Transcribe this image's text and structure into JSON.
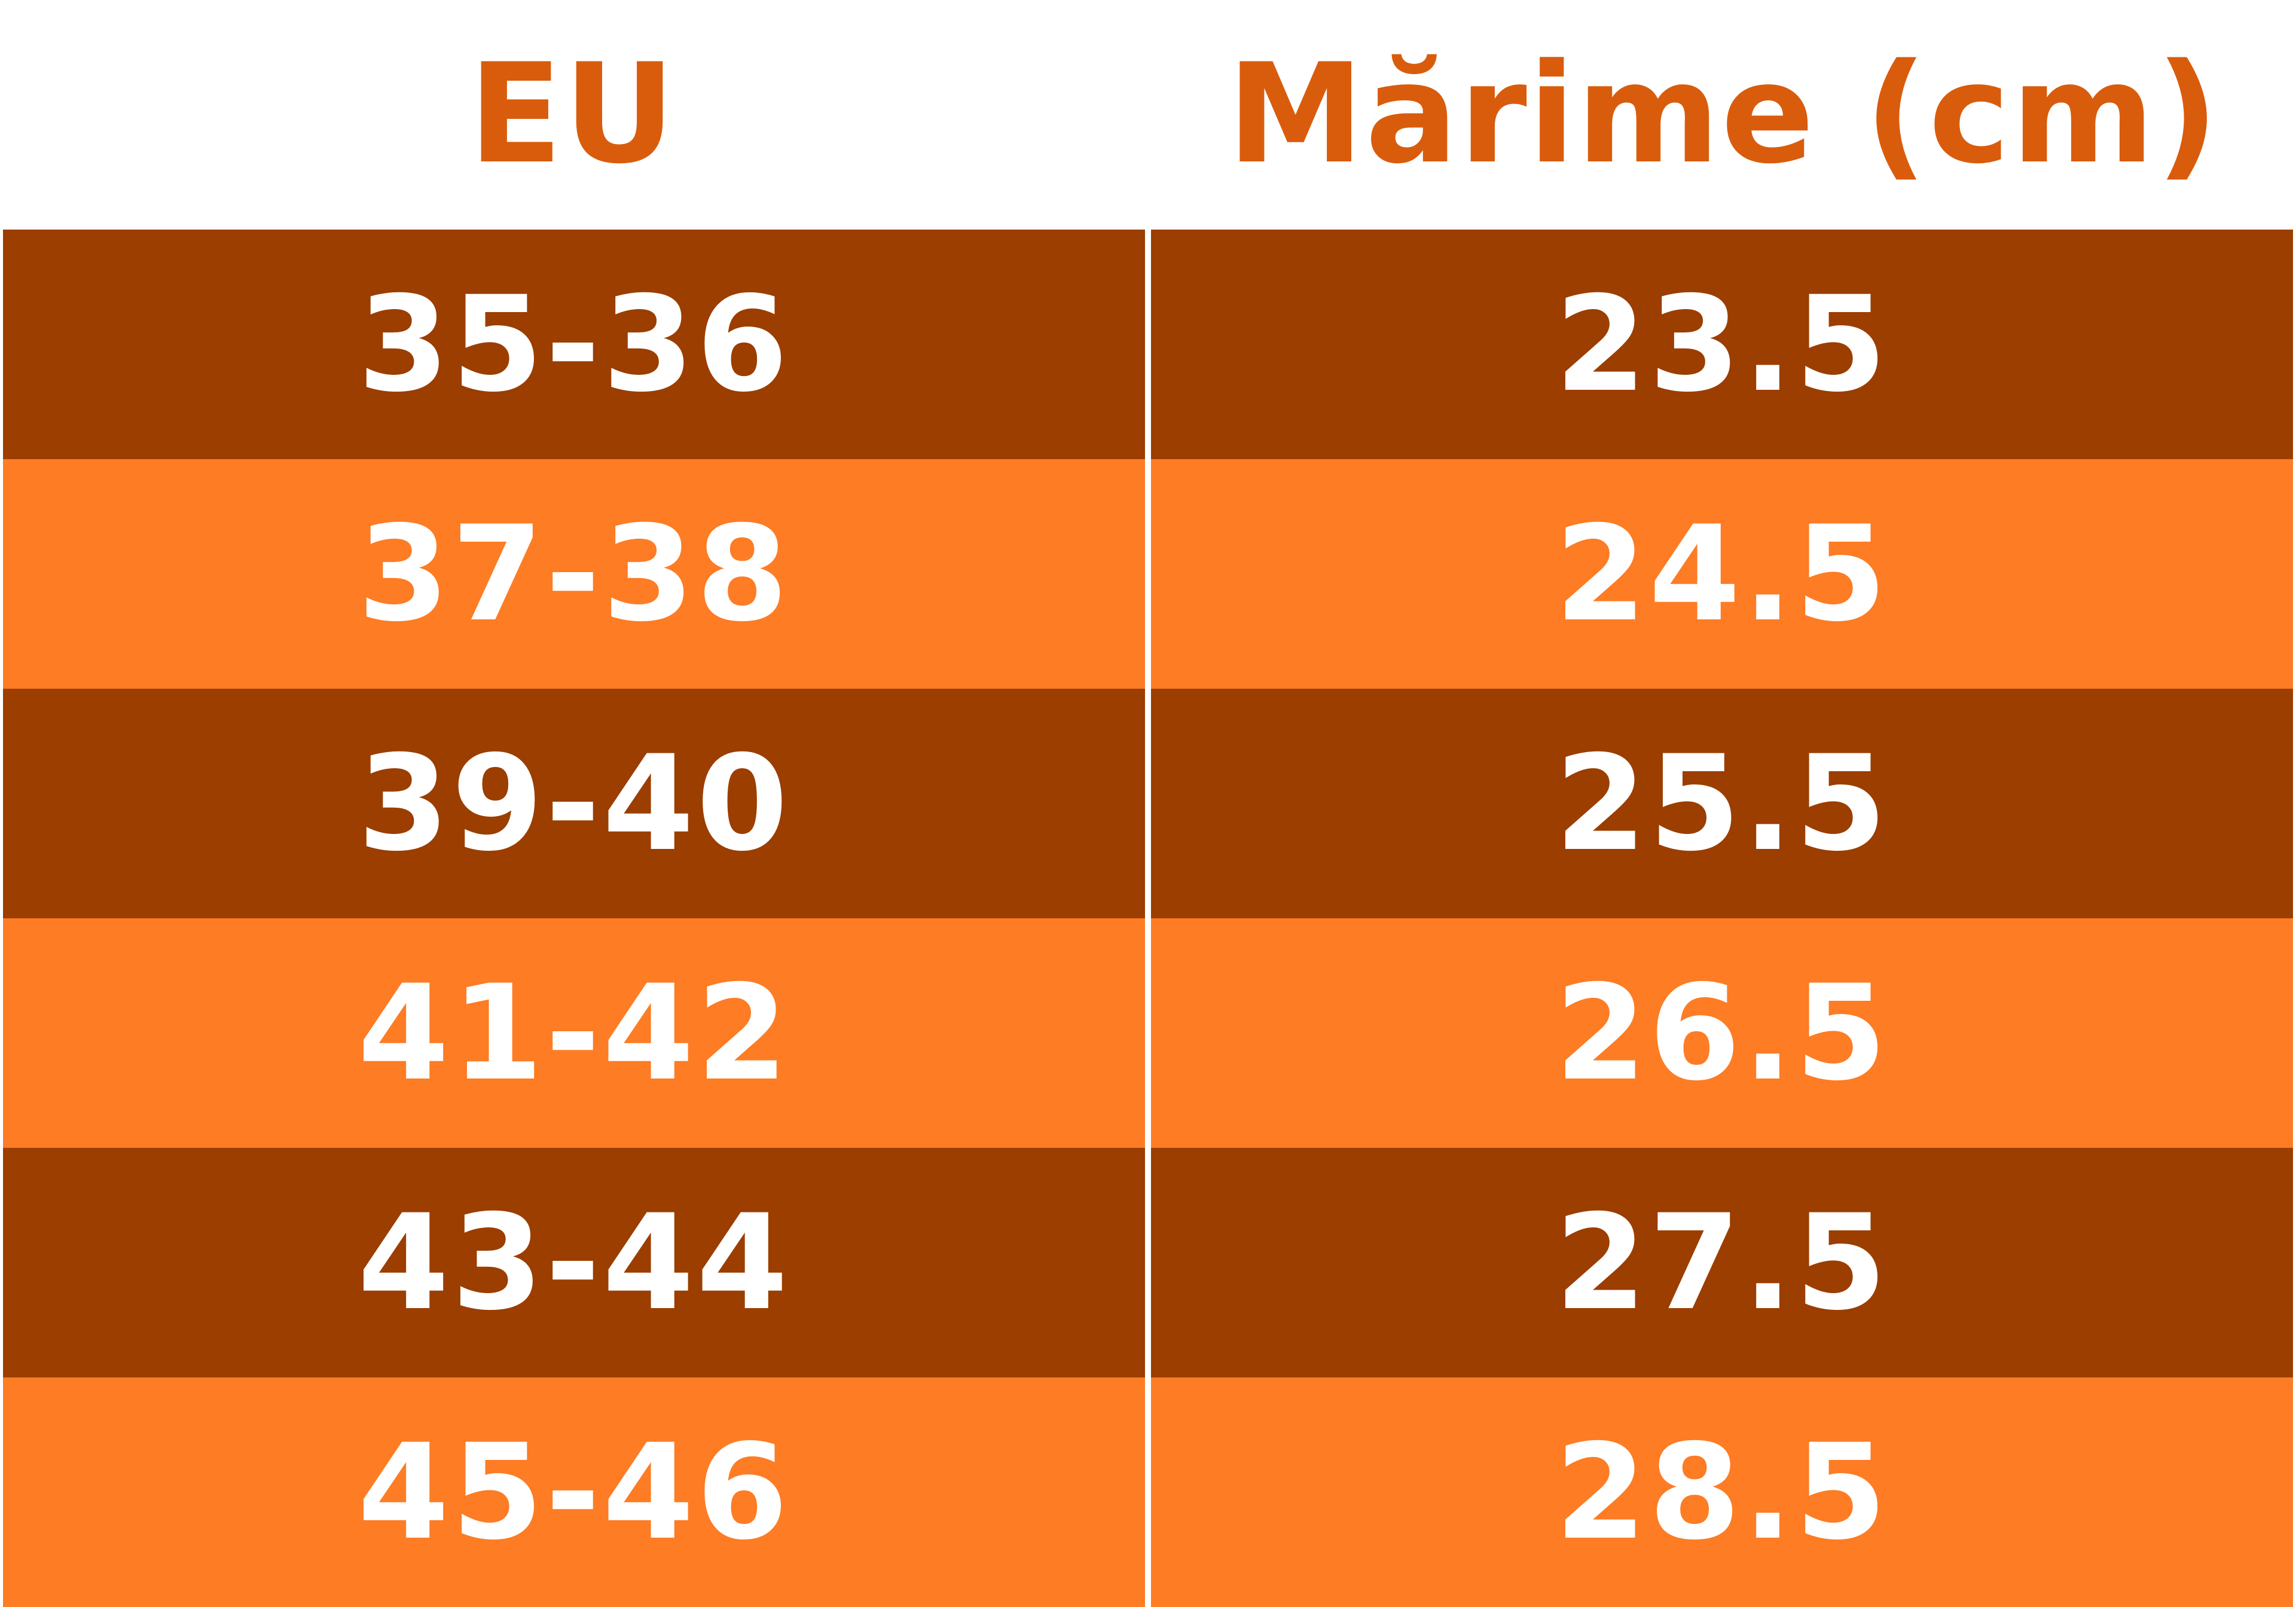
{
  "colors": {
    "header_text": "#d95c0c",
    "row_dark": "#9b3e00",
    "row_light": "#fd7c24",
    "cell_text": "#ffffff",
    "divider": "#ffffff"
  },
  "table": {
    "headers": [
      "EU",
      "Mărime (cm)"
    ],
    "rows": [
      {
        "eu": "35-36",
        "size": "23.5"
      },
      {
        "eu": "37-38",
        "size": "24.5"
      },
      {
        "eu": "39-40",
        "size": "25.5"
      },
      {
        "eu": "41-42",
        "size": "26.5"
      },
      {
        "eu": "43-44",
        "size": "27.5"
      },
      {
        "eu": "45-46",
        "size": "28.5"
      }
    ]
  }
}
